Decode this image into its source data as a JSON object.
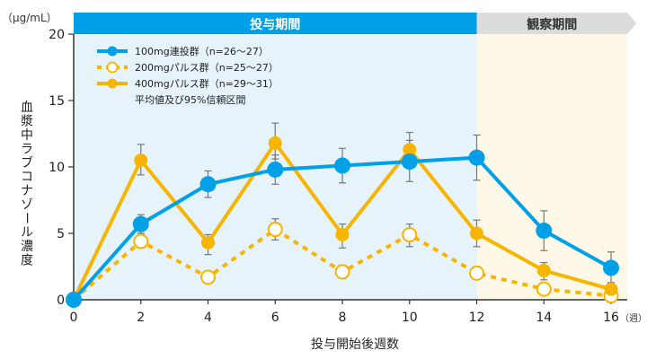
{
  "chart_data": {
    "type": "line",
    "title": "",
    "unit_label": "（μg/mL）",
    "xlabel": "投与開始後週数",
    "x_unit_label": "（週）",
    "ylabel": "血漿中ラブコナゾール濃度",
    "xlim": [
      0,
      16
    ],
    "ylim": [
      0,
      20
    ],
    "x_ticks": [
      0,
      2,
      4,
      6,
      8,
      10,
      12,
      14,
      16
    ],
    "y_ticks": [
      0,
      5,
      10,
      15,
      20
    ],
    "grid": false,
    "legend_position": "top-left",
    "legend_note": "平均値及び95%信頼区間",
    "periods": [
      {
        "label": "投与期間",
        "start": 0,
        "end": 12,
        "header_color": "#00a0e9",
        "bg_color": "#e6f3fb",
        "text_color": "#ffffff"
      },
      {
        "label": "観察期間",
        "start": 12,
        "end": 16,
        "header_color": "#dcdcdc",
        "bg_color": "#fef8e8",
        "text_color": "#333333"
      }
    ],
    "series": [
      {
        "name": "100mg連投群（n=26〜27）",
        "color": "#00a0e9",
        "style": "solid-filled",
        "x": [
          0,
          2,
          4,
          6,
          8,
          10,
          12,
          14,
          16
        ],
        "values": [
          0,
          5.7,
          8.7,
          9.8,
          10.1,
          10.4,
          10.7,
          5.2,
          2.4
        ],
        "ci_low": [
          null,
          5.0,
          7.7,
          8.7,
          8.8,
          8.9,
          9.0,
          3.7,
          1.3
        ],
        "ci_high": [
          null,
          6.4,
          9.7,
          10.9,
          11.4,
          12.0,
          12.4,
          6.7,
          3.6
        ]
      },
      {
        "name": "200mgパルス群（n=25〜27）",
        "color": "#f8b500",
        "style": "dashed-open",
        "x": [
          0,
          2,
          4,
          6,
          8,
          10,
          12,
          14,
          16
        ],
        "values": [
          0,
          4.4,
          1.7,
          5.3,
          2.1,
          4.9,
          2.0,
          0.8,
          0.3
        ],
        "ci_low": [
          null,
          3.9,
          1.4,
          4.5,
          1.6,
          4.0,
          1.6,
          0.5,
          0.1
        ],
        "ci_high": [
          null,
          5.0,
          2.1,
          6.1,
          2.6,
          5.7,
          2.5,
          1.1,
          0.6
        ]
      },
      {
        "name": "400mgパルス群（n=29〜31）",
        "color": "#f8b500",
        "style": "solid-filled",
        "x": [
          0,
          2,
          4,
          6,
          8,
          10,
          12,
          14,
          16
        ],
        "values": [
          0,
          10.5,
          4.3,
          11.8,
          4.9,
          11.3,
          5.0,
          2.2,
          0.8
        ],
        "ci_low": [
          null,
          9.4,
          3.4,
          10.6,
          3.9,
          10.7,
          4.0,
          1.5,
          0.4
        ],
        "ci_high": [
          null,
          11.7,
          4.9,
          13.3,
          5.7,
          12.6,
          6.0,
          2.8,
          1.2
        ]
      }
    ]
  }
}
